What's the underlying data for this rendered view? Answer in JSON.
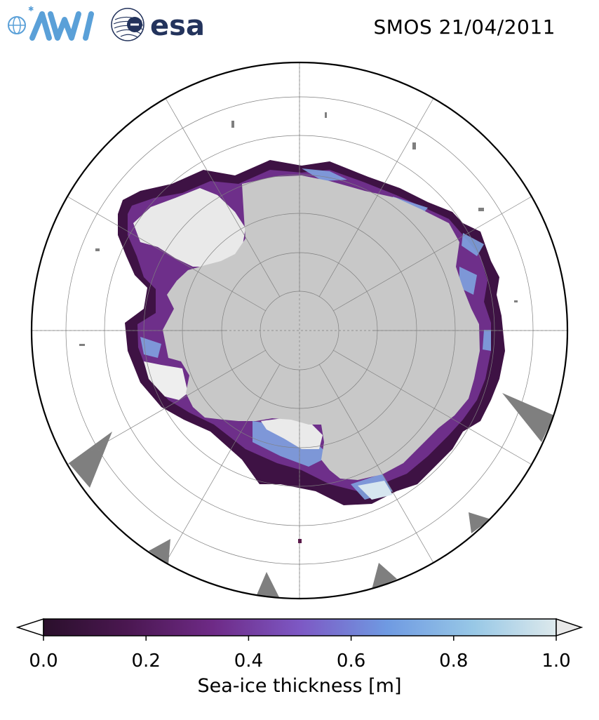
{
  "header": {
    "logo_awi": "AWI",
    "logo_esa": "esa",
    "title": "SMOS 21/04/2011"
  },
  "map": {
    "projection": "south-polar-stereographic",
    "region": "Antarctica / Southern Ocean",
    "land_color": "#c8c8c8",
    "masked_color": "#7f7f7f",
    "graticule_color": "#808080"
  },
  "colorbar": {
    "label": "Sea-ice thickness [m]",
    "ticks": [
      "0.0",
      "0.2",
      "0.4",
      "0.6",
      "0.8",
      "1.0"
    ],
    "tick_values": [
      0.0,
      0.2,
      0.4,
      0.6,
      0.8,
      1.0
    ],
    "range": [
      0.0,
      1.0
    ],
    "extend": "both",
    "colormap": [
      "#2a0f2b",
      "#4a1750",
      "#6e2a86",
      "#7d58c4",
      "#6f9ae2",
      "#98c8e6",
      "#dde9ec"
    ],
    "under_color": "#ffffff",
    "over_color": "#e8e8e8"
  }
}
